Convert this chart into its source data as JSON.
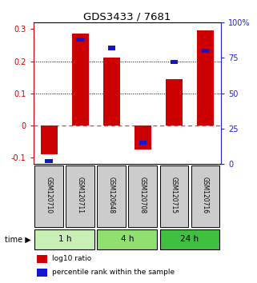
{
  "title": "GDS3433 / 7681",
  "samples": [
    "GSM120710",
    "GSM120711",
    "GSM120648",
    "GSM120708",
    "GSM120715",
    "GSM120716"
  ],
  "log10_ratio": [
    -0.09,
    0.285,
    0.21,
    -0.075,
    0.145,
    0.295
  ],
  "percentile_rank": [
    2,
    88,
    82,
    15,
    72,
    80
  ],
  "groups": [
    {
      "label": "1 h",
      "indices": [
        0,
        1
      ],
      "color": "#c8f0b4"
    },
    {
      "label": "4 h",
      "indices": [
        2,
        3
      ],
      "color": "#90e070"
    },
    {
      "label": "24 h",
      "indices": [
        4,
        5
      ],
      "color": "#40c040"
    }
  ],
  "ylim_left": [
    -0.12,
    0.32
  ],
  "ylim_right": [
    0,
    100
  ],
  "yticks_left": [
    -0.1,
    0.0,
    0.1,
    0.2,
    0.3
  ],
  "yticks_right": [
    0,
    25,
    50,
    75,
    100
  ],
  "bar_color": "#cc0000",
  "dot_color": "#1515cc",
  "zero_line_color": "#cc4444",
  "grid_color": "#000000",
  "right_axis_color": "#2222cc",
  "left_axis_color": "#cc0000",
  "bar_width": 0.55,
  "sample_box_color": "#cccccc",
  "time_label": "time"
}
